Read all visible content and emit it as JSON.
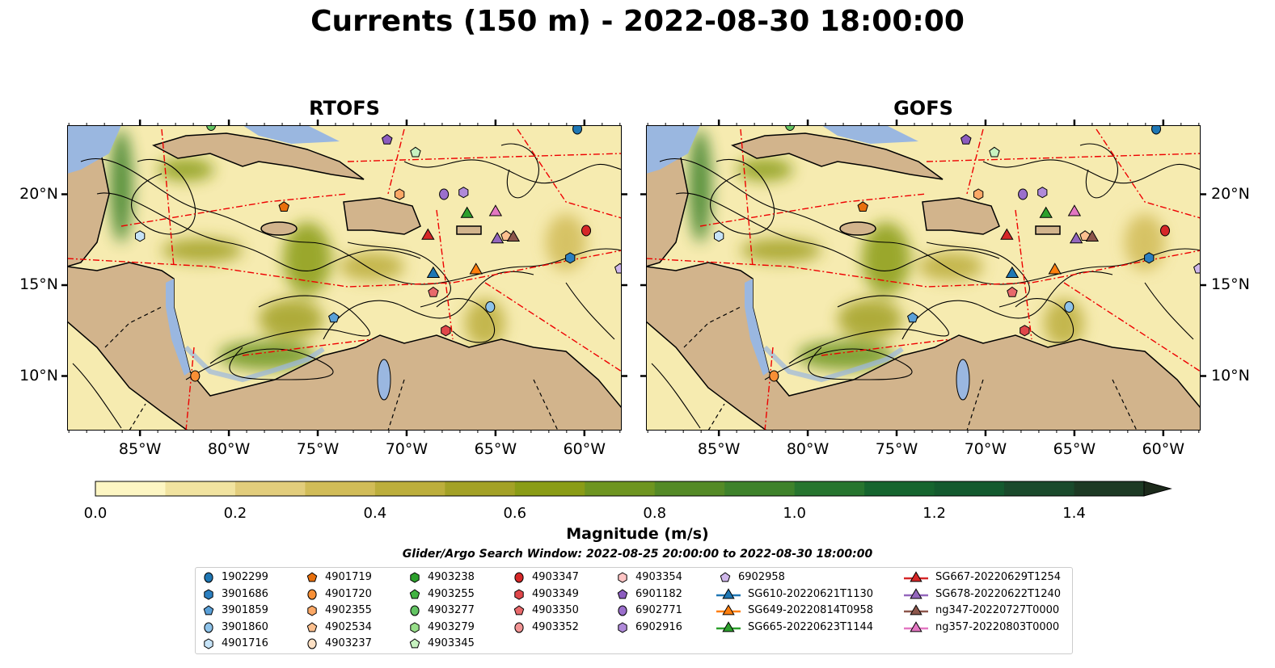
{
  "title": "Currents (150 m) - 2022-08-30 18:00:00",
  "panels": [
    {
      "title": "RTOFS"
    },
    {
      "title": "GOFS"
    }
  ],
  "map_extent": {
    "lon": [
      -89.1,
      -57.9
    ],
    "lat": [
      7.0,
      23.8
    ]
  },
  "xticks": [
    {
      "lon": -85,
      "label": "85°W"
    },
    {
      "lon": -80,
      "label": "80°W"
    },
    {
      "lon": -75,
      "label": "75°W"
    },
    {
      "lon": -70,
      "label": "70°W"
    },
    {
      "lon": -65,
      "label": "65°W"
    },
    {
      "lon": -60,
      "label": "60°W"
    }
  ],
  "yticks": [
    {
      "lat": 20,
      "label": "20°N"
    },
    {
      "lat": 15,
      "label": "15°N"
    },
    {
      "lat": 10,
      "label": "10°N"
    }
  ],
  "colorbar": {
    "label": "Magnitude (m/s)",
    "ticks": [
      "0.0",
      "0.2",
      "0.4",
      "0.6",
      "0.8",
      "1.0",
      "1.2",
      "1.4"
    ],
    "range": [
      0,
      1.5
    ],
    "colors": [
      "#fdf6c3",
      "#f1e3a0",
      "#e2cd7c",
      "#d1bc58",
      "#bcae3c",
      "#a3a126",
      "#8a9c16",
      "#6e9520",
      "#548a26",
      "#3e822b",
      "#27752f",
      "#16652f",
      "#145a2f",
      "#1a4a2c",
      "#1d3a24"
    ],
    "extend_color": "#1c2a1b"
  },
  "search_window": "Glider/Argo Search Window: 2022-08-25 20:00:00 to 2022-08-30 18:00:00",
  "legend": [
    {
      "label": "1902299",
      "shape": "circle",
      "color": "#1f77b4",
      "lon": -60.4,
      "lat": 23.6
    },
    {
      "label": "3901686",
      "shape": "hexagon",
      "color": "#2b7fc0",
      "lon": -60.8,
      "lat": 16.5
    },
    {
      "label": "3901859",
      "shape": "pentagon",
      "color": "#5aa0d8",
      "lon": -74.1,
      "lat": 13.2
    },
    {
      "label": "3901860",
      "shape": "circle",
      "color": "#8ec3ea",
      "lon": -65.3,
      "lat": 13.8
    },
    {
      "label": "4901716",
      "shape": "hexagon",
      "color": "#c6e3f7",
      "lon": -85.0,
      "lat": 17.7
    },
    {
      "label": "4901719",
      "shape": "pentagon",
      "color": "#e8700d",
      "lon": -76.9,
      "lat": 19.3
    },
    {
      "label": "4901720",
      "shape": "circle",
      "color": "#f88f35",
      "lon": -81.9,
      "lat": 10.0
    },
    {
      "label": "4902355",
      "shape": "hexagon",
      "color": "#fba866",
      "lon": -70.4,
      "lat": 20.0
    },
    {
      "label": "4902534",
      "shape": "pentagon",
      "color": "#fcc08f",
      "lon": -64.4,
      "lat": 17.7
    },
    {
      "label": "4903237",
      "shape": "circle",
      "color": "#fde0c4",
      "lon": null,
      "lat": null
    },
    {
      "label": "4903238",
      "shape": "hexagon",
      "color": "#2ca02c",
      "lon": null,
      "lat": null
    },
    {
      "label": "4903255",
      "shape": "pentagon",
      "color": "#42b342",
      "lon": null,
      "lat": null
    },
    {
      "label": "4903277",
      "shape": "circle",
      "color": "#63c463",
      "lon": -81.0,
      "lat": 23.8
    },
    {
      "label": "4903279",
      "shape": "hexagon",
      "color": "#98df8a",
      "lon": null,
      "lat": null
    },
    {
      "label": "4903345",
      "shape": "pentagon",
      "color": "#c7f2c0",
      "lon": -69.5,
      "lat": 22.3
    },
    {
      "label": "4903347",
      "shape": "circle",
      "color": "#d62728",
      "lon": -59.9,
      "lat": 18.0
    },
    {
      "label": "4903349",
      "shape": "hexagon",
      "color": "#e0474a",
      "lon": -67.8,
      "lat": 12.5
    },
    {
      "label": "4903350",
      "shape": "pentagon",
      "color": "#e8696b",
      "lon": -68.5,
      "lat": 14.6
    },
    {
      "label": "4903352",
      "shape": "circle",
      "color": "#f29494",
      "lon": null,
      "lat": null
    },
    {
      "label": "4903354",
      "shape": "hexagon",
      "color": "#ffc4c4",
      "lon": null,
      "lat": null
    },
    {
      "label": "6901182",
      "shape": "pentagon",
      "color": "#8c5cbf",
      "lon": -71.1,
      "lat": 23.0
    },
    {
      "label": "6902771",
      "shape": "circle",
      "color": "#9b6fcc",
      "lon": -67.9,
      "lat": 20.0
    },
    {
      "label": "6902916",
      "shape": "hexagon",
      "color": "#b08ad9",
      "lon": -66.8,
      "lat": 20.1
    },
    {
      "label": "6902958",
      "shape": "pentagon",
      "color": "#cfb7ea",
      "lon": -58.0,
      "lat": 15.9
    },
    {
      "label": "SG610-20220621T1130",
      "shape": "triangle",
      "color": "#1f77b4",
      "lon": -68.5,
      "lat": 15.7
    },
    {
      "label": "SG649-20220814T0958",
      "shape": "triangle",
      "color": "#ff7f0e",
      "lon": -66.1,
      "lat": 15.9
    },
    {
      "label": "SG665-20220623T1144",
      "shape": "triangle",
      "color": "#2ca02c",
      "lon": -66.6,
      "lat": 19.0
    },
    {
      "label": "SG667-20220629T1254",
      "shape": "triangle",
      "color": "#d62728",
      "lon": -68.8,
      "lat": 17.8
    },
    {
      "label": "SG678-20220622T1240",
      "shape": "triangle",
      "color": "#9467bd",
      "lon": -64.9,
      "lat": 17.6
    },
    {
      "label": "ng347-20220727T0000",
      "shape": "triangle",
      "color": "#8c564b",
      "lon": -64.0,
      "lat": 17.7
    },
    {
      "label": "ng357-20220803T0000",
      "shape": "triangle",
      "color": "#e377c2",
      "lon": -65.0,
      "lat": 19.1
    }
  ]
}
